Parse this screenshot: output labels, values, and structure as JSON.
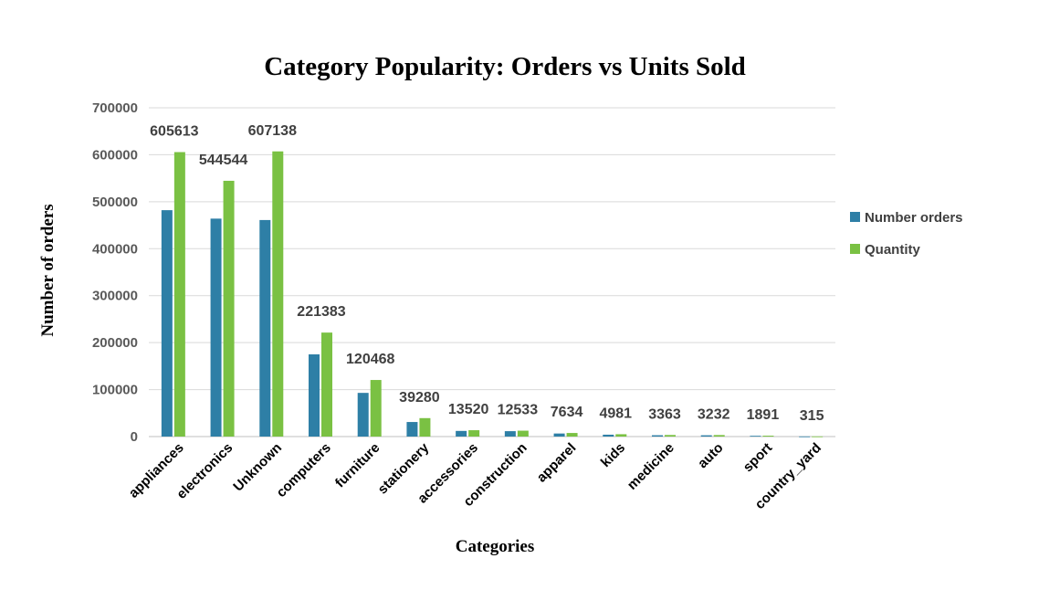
{
  "chart_data": {
    "type": "bar",
    "title": "Category Popularity: Orders vs Units Sold",
    "xlabel": "Categories",
    "ylabel": "Number of orders",
    "ylim": [
      0,
      700000
    ],
    "yticks": [
      0,
      100000,
      200000,
      300000,
      400000,
      500000,
      600000,
      700000
    ],
    "grid": true,
    "legend_position": "right",
    "categories": [
      "appliances",
      "electronics",
      "Unknown",
      "computers",
      "furniture",
      "stationery",
      "accessories",
      "construction",
      "apparel",
      "kids",
      "medicine",
      "auto",
      "sport",
      "country_yard"
    ],
    "series": [
      {
        "name": "Number orders",
        "color": "#2e7fa6",
        "values": [
          482000,
          464000,
          461000,
          175000,
          93000,
          31000,
          12000,
          11500,
          6500,
          4000,
          2800,
          2700,
          1600,
          280
        ]
      },
      {
        "name": "Quantity",
        "color": "#7ac143",
        "values": [
          605613,
          544544,
          607138,
          221383,
          120468,
          39280,
          13520,
          12533,
          7634,
          4981,
          3363,
          3232,
          1891,
          315
        ],
        "data_labels": [
          "605613",
          "544544",
          "607138",
          "221383",
          "120468",
          "39280",
          "13520",
          "12533",
          "7634",
          "4981",
          "3363",
          "3232",
          "1891",
          "315"
        ]
      }
    ]
  }
}
